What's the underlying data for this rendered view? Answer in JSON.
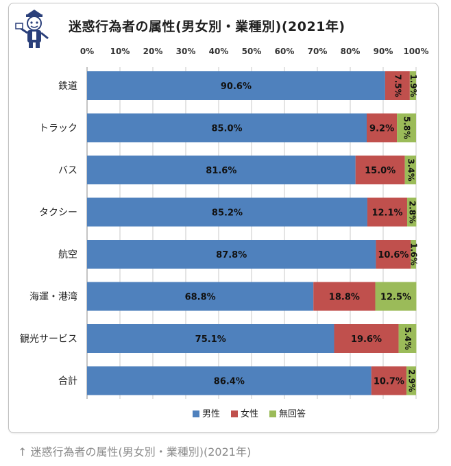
{
  "caption": "↑ 迷惑行為者の属性(男女別・業種別)(2021年)",
  "chart_data": {
    "type": "bar",
    "orientation": "horizontal",
    "stacked": "percent",
    "title": "迷惑行為者の属性(男女別・業種別)(2021年)",
    "xlim": [
      0,
      100
    ],
    "x_ticks": [
      "0%",
      "10%",
      "20%",
      "30%",
      "40%",
      "50%",
      "60%",
      "70%",
      "80%",
      "90%",
      "100%"
    ],
    "categories": [
      "鉄道",
      "トラック",
      "バス",
      "タクシー",
      "航空",
      "海運・港湾",
      "観光サービス",
      "合計"
    ],
    "series": [
      {
        "name": "男性",
        "color": "#4f81bd",
        "values": [
          90.6,
          85.0,
          81.6,
          85.2,
          87.8,
          68.8,
          75.1,
          86.4
        ]
      },
      {
        "name": "女性",
        "color": "#c0504d",
        "values": [
          7.5,
          9.2,
          15.0,
          12.1,
          10.6,
          18.8,
          19.6,
          10.7
        ]
      },
      {
        "name": "無回答",
        "color": "#9bbb59",
        "values": [
          1.9,
          5.8,
          3.4,
          2.8,
          1.6,
          12.5,
          5.4,
          2.9
        ]
      }
    ],
    "legend": "bottom",
    "grid": true
  }
}
